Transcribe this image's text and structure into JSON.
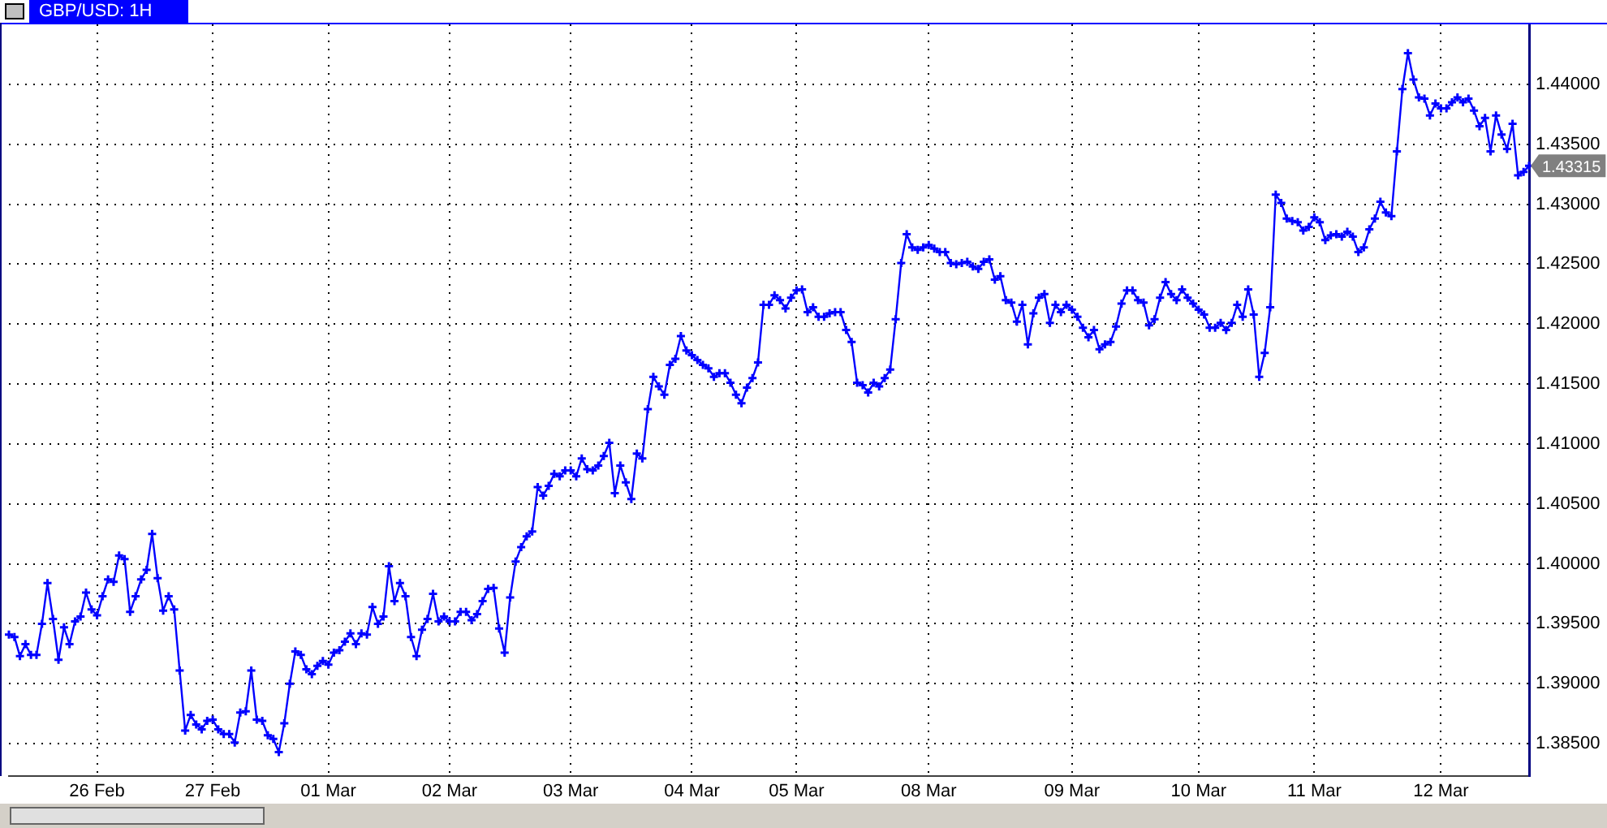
{
  "chart_data": {
    "type": "line",
    "title": "GBP/USD: 1H",
    "categories": [
      null,
      null,
      null,
      null,
      null,
      null,
      null,
      null,
      null,
      null,
      null,
      null,
      null,
      null,
      null,
      null,
      "26 Feb",
      null,
      null,
      null,
      null,
      null,
      null,
      null,
      null,
      null,
      null,
      null,
      null,
      null,
      null,
      null,
      null,
      null,
      null,
      null,
      null,
      "27 Feb",
      null,
      null,
      null,
      null,
      null,
      null,
      null,
      null,
      null,
      null,
      null,
      null,
      null,
      null,
      null,
      null,
      null,
      null,
      null,
      null,
      "01 Mar",
      null,
      null,
      null,
      null,
      null,
      null,
      null,
      null,
      null,
      null,
      null,
      null,
      null,
      null,
      null,
      null,
      null,
      null,
      null,
      null,
      null,
      "02 Mar",
      null,
      null,
      null,
      null,
      null,
      null,
      null,
      null,
      null,
      null,
      null,
      null,
      null,
      null,
      null,
      null,
      null,
      null,
      null,
      null,
      null,
      "03 Mar",
      null,
      null,
      null,
      null,
      null,
      null,
      null,
      null,
      null,
      null,
      null,
      null,
      null,
      null,
      null,
      null,
      null,
      null,
      null,
      null,
      null,
      "04 Mar",
      null,
      null,
      null,
      null,
      null,
      null,
      null,
      null,
      null,
      null,
      null,
      null,
      null,
      null,
      null,
      null,
      null,
      null,
      "05 Mar",
      null,
      null,
      null,
      null,
      null,
      null,
      null,
      null,
      null,
      null,
      null,
      null,
      null,
      null,
      null,
      null,
      null,
      null,
      null,
      null,
      null,
      null,
      null,
      "08 Mar",
      null,
      null,
      null,
      null,
      null,
      null,
      null,
      null,
      null,
      null,
      null,
      null,
      null,
      null,
      null,
      null,
      null,
      null,
      null,
      null,
      null,
      null,
      null,
      null,
      null,
      "09 Mar",
      null,
      null,
      null,
      null,
      null,
      null,
      null,
      null,
      null,
      null,
      null,
      null,
      null,
      null,
      null,
      null,
      null,
      null,
      null,
      null,
      null,
      null,
      "10 Mar",
      null,
      null,
      null,
      null,
      null,
      null,
      null,
      null,
      null,
      null,
      null,
      null,
      null,
      null,
      null,
      null,
      null,
      null,
      null,
      null,
      "11 Mar",
      null,
      null,
      null,
      null,
      null,
      null,
      null,
      null,
      null,
      null,
      null,
      null,
      null,
      null,
      null,
      null,
      null,
      null,
      null,
      null,
      null,
      null,
      "12 Mar",
      null,
      null,
      null,
      null,
      null,
      null,
      null,
      null,
      null,
      null,
      null,
      null,
      null,
      null,
      null,
      null
    ],
    "series": [
      {
        "color": "#0000ff",
        "values": [
          1.3941,
          1.3939,
          1.3923,
          1.3933,
          1.3924,
          1.3924,
          1.395,
          1.3984,
          1.3954,
          1.392,
          1.3947,
          1.3933,
          1.3952,
          1.3956,
          1.3976,
          1.3962,
          1.3957,
          1.3973,
          1.3987,
          1.3985,
          1.4007,
          1.4004,
          1.396,
          1.3973,
          1.3987,
          1.3995,
          1.4025,
          1.3988,
          1.3961,
          1.3973,
          1.3962,
          1.3911,
          1.3861,
          1.3874,
          1.3866,
          1.3862,
          1.3869,
          1.387,
          1.3862,
          1.3858,
          1.3858,
          1.3851,
          1.3876,
          1.3877,
          1.3911,
          1.387,
          1.3869,
          1.3857,
          1.3854,
          1.3843,
          1.3867,
          1.39,
          1.3927,
          1.3924,
          1.3912,
          1.3908,
          1.3915,
          1.3919,
          1.3916,
          1.3926,
          1.3928,
          1.3935,
          1.3942,
          1.3933,
          1.3942,
          1.3941,
          1.3964,
          1.395,
          1.3956,
          1.3998,
          1.3969,
          1.3984,
          1.3973,
          1.3939,
          1.3923,
          1.3945,
          1.3954,
          1.3975,
          1.3952,
          1.3956,
          1.3952,
          1.3952,
          1.396,
          1.396,
          1.3953,
          1.3958,
          1.3969,
          1.3979,
          1.398,
          1.3946,
          1.3926,
          1.3972,
          1.4002,
          1.4014,
          1.4023,
          1.4027,
          1.4064,
          1.4057,
          1.4065,
          1.4075,
          1.4073,
          1.4078,
          1.4078,
          1.4073,
          1.4088,
          1.4079,
          1.4078,
          1.4082,
          1.409,
          1.4101,
          1.4059,
          1.4082,
          1.4068,
          1.4054,
          1.4092,
          1.4088,
          1.4129,
          1.4156,
          1.4148,
          1.4141,
          1.4166,
          1.4171,
          1.419,
          1.4178,
          1.4174,
          1.417,
          1.4166,
          1.4163,
          1.4156,
          1.4159,
          1.4159,
          1.4151,
          1.4141,
          1.4134,
          1.4147,
          1.4155,
          1.4168,
          1.4216,
          1.4216,
          1.4224,
          1.422,
          1.4213,
          1.4222,
          1.4228,
          1.4229,
          1.421,
          1.4214,
          1.4206,
          1.4206,
          1.4209,
          1.421,
          1.421,
          1.4195,
          1.4185,
          1.4151,
          1.4149,
          1.4143,
          1.4151,
          1.4148,
          1.4155,
          1.4162,
          1.4204,
          1.4251,
          1.4275,
          1.4264,
          1.4262,
          1.4264,
          1.4266,
          1.4263,
          1.426,
          1.426,
          1.4251,
          1.425,
          1.4251,
          1.4252,
          1.4248,
          1.4246,
          1.4252,
          1.4254,
          1.4237,
          1.424,
          1.422,
          1.4218,
          1.4202,
          1.4216,
          1.4183,
          1.4209,
          1.4222,
          1.4225,
          1.4201,
          1.4216,
          1.421,
          1.4216,
          1.4212,
          1.4206,
          1.4197,
          1.4189,
          1.4195,
          1.4179,
          1.4183,
          1.4185,
          1.4198,
          1.4217,
          1.4228,
          1.4228,
          1.422,
          1.4218,
          1.4199,
          1.4204,
          1.4222,
          1.4235,
          1.4225,
          1.422,
          1.4229,
          1.4222,
          1.4217,
          1.4212,
          1.4208,
          1.4197,
          1.4197,
          1.4201,
          1.4195,
          1.4201,
          1.4216,
          1.4206,
          1.4229,
          1.4208,
          1.4156,
          1.4176,
          1.4214,
          1.4308,
          1.4301,
          1.4288,
          1.4286,
          1.4285,
          1.4278,
          1.4281,
          1.4289,
          1.4285,
          1.427,
          1.4274,
          1.4275,
          1.4273,
          1.4277,
          1.4273,
          1.426,
          1.4264,
          1.4279,
          1.4288,
          1.4302,
          1.4293,
          1.429,
          1.4344,
          1.4396,
          1.4426,
          1.4404,
          1.4389,
          1.4388,
          1.4374,
          1.4384,
          1.438,
          1.438,
          1.4385,
          1.4389,
          1.4385,
          1.4388,
          1.4378,
          1.4365,
          1.4372,
          1.4344,
          1.4374,
          1.4358,
          1.4346,
          1.4367,
          1.4324,
          1.4327,
          1.4332
        ]
      }
    ],
    "ylim": [
      1.3823,
      1.445
    ],
    "yticks": [
      {
        "value": 1.385,
        "label": "1.38500"
      },
      {
        "value": 1.39,
        "label": "1.39000"
      },
      {
        "value": 1.395,
        "label": "1.39500"
      },
      {
        "value": 1.4,
        "label": "1.40000"
      },
      {
        "value": 1.405,
        "label": "1.40500"
      },
      {
        "value": 1.41,
        "label": "1.41000"
      },
      {
        "value": 1.415,
        "label": "1.41500"
      },
      {
        "value": 1.42,
        "label": "1.42000"
      },
      {
        "value": 1.425,
        "label": "1.42500"
      },
      {
        "value": 1.43,
        "label": "1.43000"
      },
      {
        "value": 1.435,
        "label": "1.43500"
      },
      {
        "value": 1.44,
        "label": "1.44000"
      }
    ],
    "annotations": [
      "1.43315"
    ],
    "grid": true,
    "marker": "cross",
    "line_style": "solid"
  }
}
